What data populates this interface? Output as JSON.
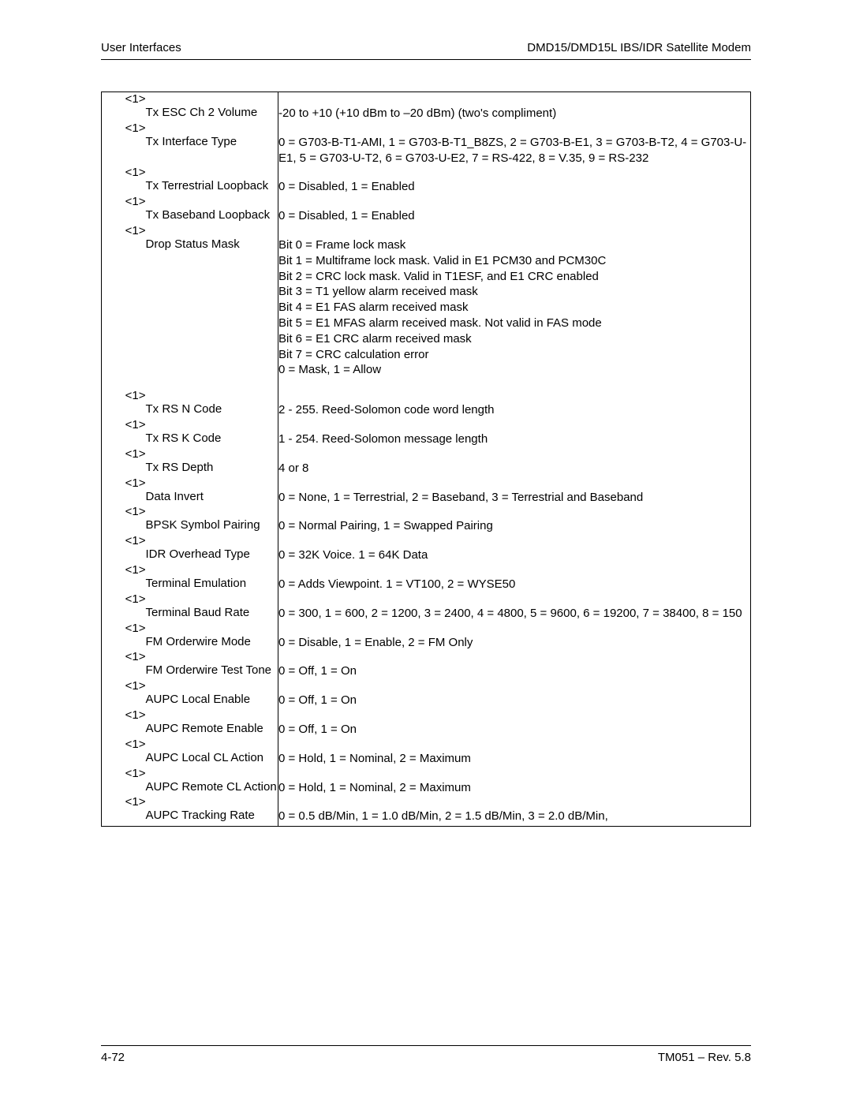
{
  "header": {
    "left": "User Interfaces",
    "right": "DMD15/DMD15L IBS/IDR Satellite Modem"
  },
  "footer": {
    "left": "4-72",
    "right": "TM051 – Rev. 5.8"
  },
  "tag_label": "<1>",
  "rows": [
    {
      "name": "Tx ESC Ch 2 Volume",
      "desc": "-20 to +10 (+10 dBm to –20 dBm) (two's compliment)"
    },
    {
      "name": "Tx Interface Type",
      "desc": "0 = G703-B-T1-AMI, 1 = G703-B-T1_B8ZS, 2 = G703-B-E1, 3 = G703-B-T2, 4 = G703-U-E1, 5 = G703-U-T2, 6 = G703-U-E2, 7 = RS-422, 8 = V.35, 9 = RS-232"
    },
    {
      "name": "Tx Terrestrial Loopback",
      "desc": "0 = Disabled, 1 = Enabled"
    },
    {
      "name": "Tx Baseband Loopback",
      "desc": "0 = Disabled, 1 = Enabled"
    },
    {
      "name": "Drop Status Mask",
      "desc": "Bit 0 = Frame lock mask\nBit 1 = Multiframe lock mask. Valid in E1 PCM30 and PCM30C\nBit 2 = CRC lock mask. Valid in T1ESF, and E1 CRC enabled\nBit 3 = T1 yellow alarm received mask\nBit 4 = E1 FAS alarm received mask\nBit 5 = E1 MFAS alarm received mask. Not valid in FAS mode\nBit 6 = E1 CRC alarm received mask\nBit 7 = CRC calculation error\n0 = Mask, 1 = Allow",
      "multiline": true,
      "spacer_after": true
    },
    {
      "name": "Tx RS N Code",
      "desc": "2 - 255. Reed-Solomon code word length"
    },
    {
      "name": "Tx RS K Code",
      "desc": "1 - 254. Reed-Solomon message length"
    },
    {
      "name": "Tx RS Depth",
      "desc": "4 or 8"
    },
    {
      "name": "Data Invert",
      "desc": "0 = None, 1 = Terrestrial, 2 = Baseband, 3 = Terrestrial and Baseband"
    },
    {
      "name": "BPSK Symbol Pairing",
      "desc": "0 = Normal Pairing, 1 = Swapped Pairing"
    },
    {
      "name": "IDR Overhead Type",
      "desc": "0 = 32K Voice. 1 = 64K Data"
    },
    {
      "name": "Terminal Emulation",
      "desc": "0 = Adds Viewpoint. 1 = VT100, 2 = WYSE50"
    },
    {
      "name": "Terminal Baud Rate",
      "desc": "0 = 300, 1 = 600, 2 = 1200, 3 = 2400, 4 = 4800, 5 = 9600, 6 = 19200, 7 = 38400, 8 = 150"
    },
    {
      "name": "FM Orderwire Mode",
      "desc": "0 = Disable, 1 = Enable, 2 = FM Only"
    },
    {
      "name": "FM Orderwire Test Tone",
      "desc": "0 = Off, 1 = On"
    },
    {
      "name": "AUPC Local Enable",
      "desc": "0 = Off, 1 = On"
    },
    {
      "name": "AUPC Remote Enable",
      "desc": "0 = Off, 1 = On"
    },
    {
      "name": "AUPC Local CL Action",
      "desc": "0 = Hold, 1 = Nominal, 2 = Maximum"
    },
    {
      "name": "AUPC Remote CL Action",
      "desc": "0 = Hold, 1 = Nominal, 2 = Maximum"
    },
    {
      "name": "AUPC Tracking Rate",
      "desc": "0 = 0.5 dB/Min, 1 = 1.0 dB/Min, 2 = 1.5 dB/Min, 3 = 2.0 dB/Min,",
      "last": true
    }
  ]
}
